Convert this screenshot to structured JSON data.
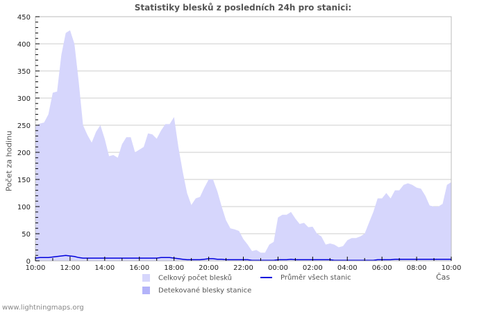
{
  "title": "Statistiky blesků z posledních 24h pro stanici:",
  "footer": "www.lightningmaps.org",
  "colors": {
    "total_fill": "#d6d6fc",
    "station_fill": "#b3b3f9",
    "average_line": "#0000dd",
    "grid": "#cccccc",
    "frame": "#bbbbbb"
  },
  "chart_data": {
    "type": "area",
    "title": "Statistiky blesků z posledních 24h pro stanici:",
    "xlabel": "Čas",
    "ylabel": "Počet za hodinu",
    "ylim": [
      0,
      450
    ],
    "yticks": [
      0,
      50,
      100,
      150,
      200,
      250,
      300,
      350,
      400,
      450
    ],
    "xticks": [
      "10:00",
      "12:00",
      "14:00",
      "16:00",
      "18:00",
      "20:00",
      "22:00",
      "00:00",
      "02:00",
      "04:00",
      "06:00",
      "08:00",
      "10:00"
    ],
    "grid": true,
    "legend_position": "bottom",
    "legend": [
      "Celkový počet blesků",
      "Průměr všech stanic",
      "Detekované blesky stanice"
    ],
    "x_hours": [
      0,
      0.25,
      0.5,
      0.75,
      1,
      1.25,
      1.5,
      1.75,
      2,
      2.25,
      2.5,
      2.75,
      3,
      3.25,
      3.5,
      3.75,
      4,
      4.25,
      4.5,
      4.75,
      5,
      5.25,
      5.5,
      5.75,
      6,
      6.25,
      6.5,
      6.75,
      7,
      7.25,
      7.5,
      7.75,
      8,
      8.25,
      8.5,
      8.75,
      9,
      9.25,
      9.5,
      9.75,
      10,
      10.25,
      10.5,
      10.75,
      11,
      11.25,
      11.5,
      11.75,
      12,
      12.25,
      12.5,
      12.75,
      13,
      13.25,
      13.5,
      13.75,
      14,
      14.25,
      14.5,
      14.75,
      15,
      15.25,
      15.5,
      15.75,
      16,
      16.25,
      16.5,
      16.75,
      17,
      17.25,
      17.5,
      17.75,
      18,
      18.25,
      18.5,
      18.75,
      19,
      19.25,
      19.5,
      19.75,
      20,
      20.25,
      20.5,
      20.75,
      21,
      21.25,
      21.5,
      21.75,
      22,
      22.25,
      22.5,
      22.75,
      23,
      23.25,
      23.5,
      23.75,
      24
    ],
    "series": [
      {
        "name": "Celkový počet blesků",
        "values": [
          248,
          253,
          255,
          270,
          310,
          312,
          380,
          420,
          425,
          400,
          330,
          250,
          232,
          218,
          238,
          250,
          225,
          193,
          195,
          190,
          215,
          228,
          228,
          200,
          205,
          210,
          235,
          233,
          225,
          240,
          252,
          252,
          265,
          210,
          165,
          125,
          103,
          115,
          118,
          135,
          150,
          150,
          128,
          100,
          75,
          60,
          58,
          55,
          40,
          30,
          18,
          20,
          15,
          15,
          30,
          35,
          80,
          85,
          85,
          90,
          78,
          68,
          70,
          62,
          63,
          50,
          45,
          30,
          32,
          30,
          25,
          27,
          38,
          42,
          42,
          45,
          50,
          70,
          90,
          115,
          115,
          125,
          115,
          130,
          130,
          140,
          143,
          140,
          135,
          133,
          120,
          102,
          100,
          100,
          105,
          140,
          145
        ],
        "color": "#d6d6fc"
      },
      {
        "name": "Průměr všech stanic",
        "values": [
          5,
          6,
          6,
          6,
          7,
          8,
          9,
          10,
          9,
          8,
          6,
          5,
          5,
          5,
          5,
          5,
          5,
          5,
          5,
          5,
          5,
          5,
          5,
          5,
          5,
          5,
          5,
          5,
          5,
          6,
          6,
          6,
          5,
          4,
          3,
          2,
          2,
          2,
          2,
          3,
          4,
          4,
          3,
          3,
          2,
          2,
          2,
          2,
          2,
          2,
          1,
          1,
          1,
          1,
          1,
          1,
          2,
          2,
          2,
          3,
          2,
          2,
          2,
          2,
          2,
          2,
          2,
          2,
          2,
          1,
          1,
          1,
          1,
          1,
          1,
          1,
          1,
          1,
          1,
          2,
          2,
          2,
          2,
          3,
          3,
          3,
          3,
          3,
          3,
          3,
          3,
          3,
          3,
          3,
          3,
          3,
          3
        ],
        "color": "#0000dd"
      },
      {
        "name": "Detekované blesky stanice",
        "values": [
          0,
          0,
          0,
          0,
          0,
          0,
          0,
          0,
          0,
          0,
          0,
          0,
          0,
          0,
          0,
          0,
          0,
          0,
          0,
          0,
          0,
          0,
          0,
          0,
          0,
          0,
          0,
          0,
          0,
          0,
          0,
          0,
          0,
          0,
          0,
          0,
          0,
          0,
          0,
          0,
          0,
          0,
          0,
          0,
          0,
          0,
          0,
          0,
          0,
          0,
          0,
          0,
          0,
          0,
          0,
          0,
          0,
          0,
          0,
          0,
          0,
          0,
          0,
          0,
          0,
          0,
          0,
          0,
          0,
          0,
          0,
          0,
          0,
          0,
          0,
          0,
          0,
          0,
          0,
          0,
          0,
          0,
          0,
          0,
          0,
          0,
          0,
          0,
          0,
          0,
          0,
          0,
          0,
          0,
          0,
          0,
          0
        ],
        "color": "#b3b3f9"
      }
    ]
  },
  "legend": {
    "total": "Celkový počet blesků",
    "average": "Průměr všech stanic",
    "station": "Detekované blesky stanice"
  },
  "axis": {
    "xname": "Čas",
    "yname": "Počet za hodinu"
  }
}
